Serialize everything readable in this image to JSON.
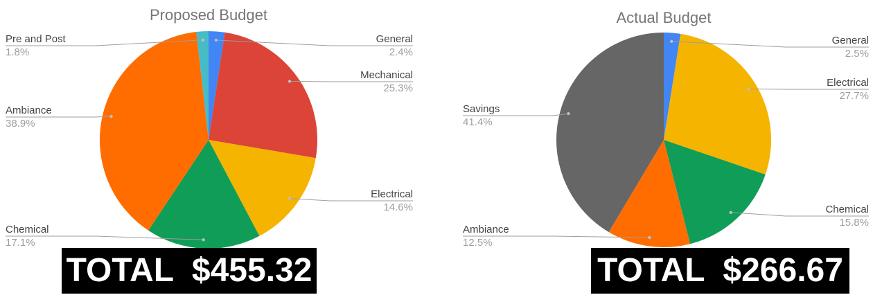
{
  "chart_data": [
    {
      "type": "pie",
      "title": "Proposed Budget",
      "slices": [
        {
          "label": "General",
          "value": 2.4,
          "color": "#4285F4"
        },
        {
          "label": "Mechanical",
          "value": 25.3,
          "color": "#DB4437"
        },
        {
          "label": "Electrical",
          "value": 14.6,
          "color": "#F4B400"
        },
        {
          "label": "Chemical",
          "value": 17.1,
          "color": "#0F9D58"
        },
        {
          "label": "Ambiance",
          "value": 38.9,
          "color": "#FF6D00"
        },
        {
          "label": "Pre and Post",
          "value": 1.8,
          "color": "#46BDC6"
        }
      ],
      "value_format": "percent",
      "legend": "none"
    },
    {
      "type": "pie",
      "title": "Actual Budget",
      "slices": [
        {
          "label": "General",
          "value": 2.5,
          "color": "#4285F4"
        },
        {
          "label": "Electrical",
          "value": 27.7,
          "color": "#F4B400"
        },
        {
          "label": "Chemical",
          "value": 15.8,
          "color": "#0F9D58"
        },
        {
          "label": "Ambiance",
          "value": 12.5,
          "color": "#FF6D00"
        },
        {
          "label": "Savings",
          "value": 41.4,
          "color": "#666666"
        }
      ],
      "value_format": "percent",
      "legend": "none"
    }
  ],
  "totals": {
    "proposed": "TOTAL  $455.32",
    "actual": "TOTAL  $266.67"
  }
}
